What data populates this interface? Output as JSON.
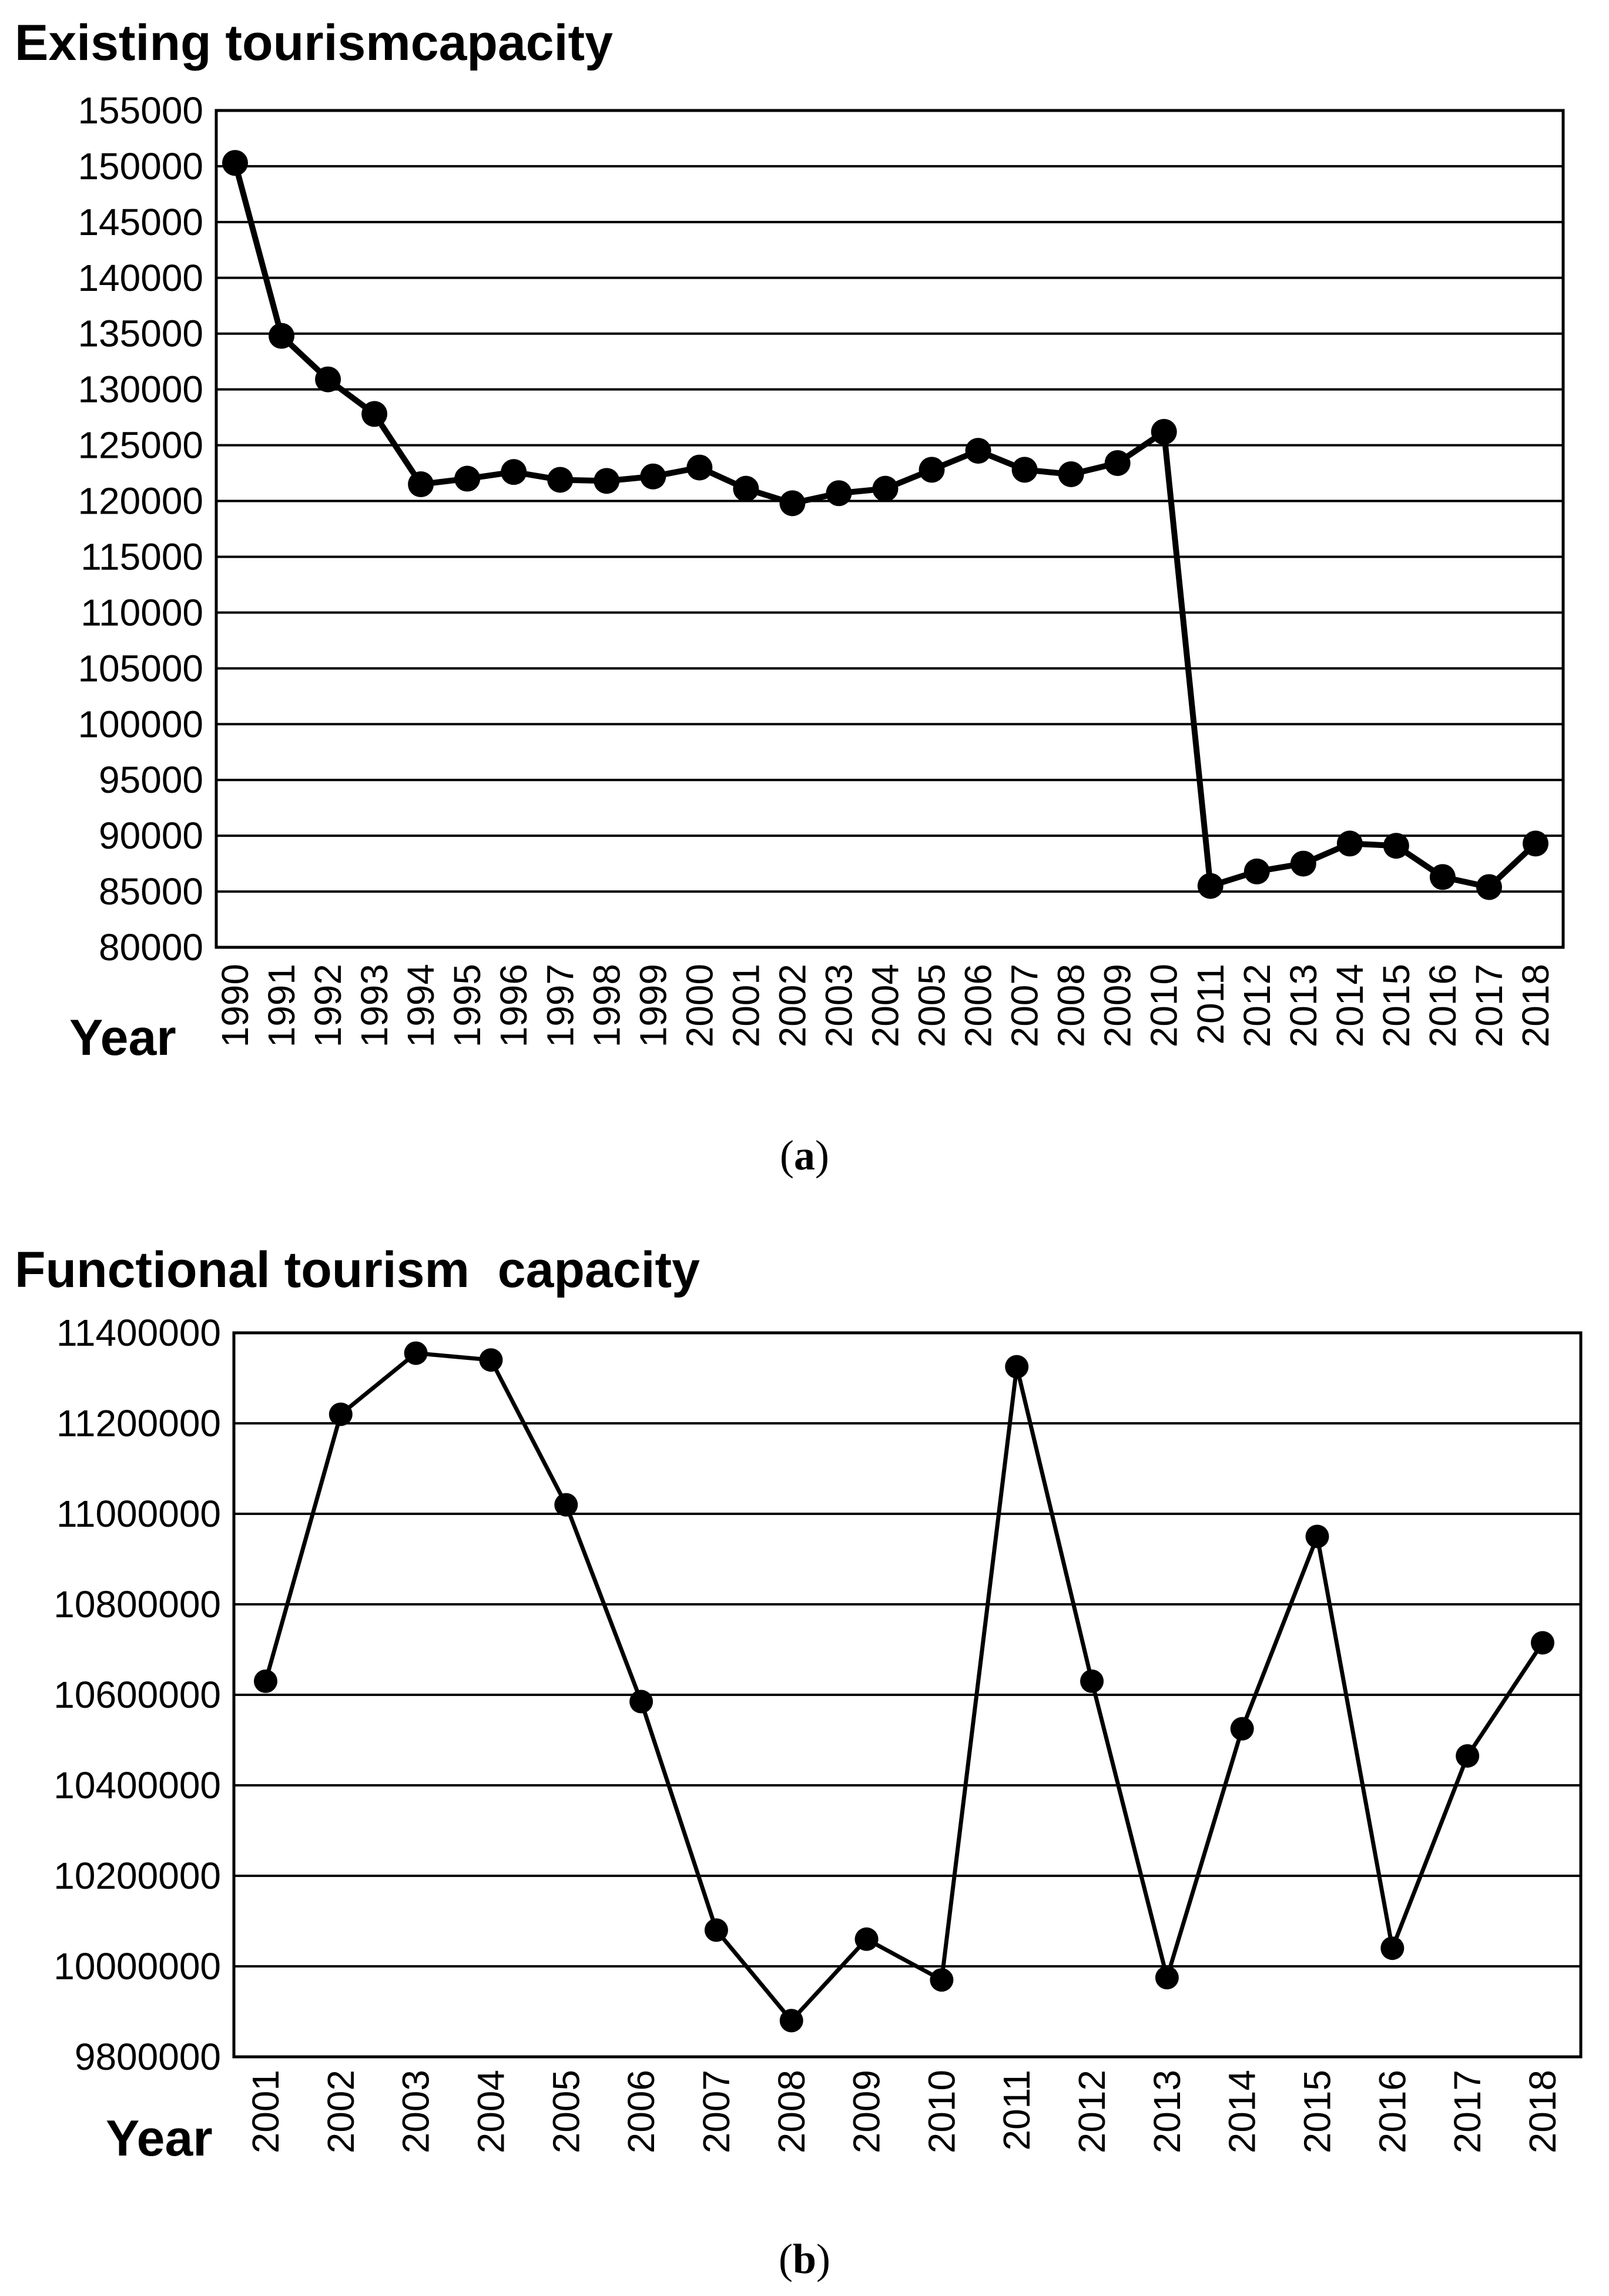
{
  "chart_data": [
    {
      "type": "line",
      "title": "Existing tourismcapacity",
      "xlabel": "Year",
      "ylabel": "",
      "caption": "a",
      "ylim": [
        80000,
        155000
      ],
      "ytick_step": 5000,
      "grid": true,
      "legend": "none",
      "x": [
        "1990",
        "1991",
        "1992",
        "1993",
        "1994",
        "1995",
        "1996",
        "1997",
        "1998",
        "1999",
        "2000",
        "2001",
        "2002",
        "2003",
        "2004",
        "2005",
        "2006",
        "2007",
        "2008",
        "2009",
        "2010",
        "2011",
        "2012",
        "2013",
        "2014",
        "2015",
        "2016",
        "2017",
        "2018"
      ],
      "series": [
        {
          "values": [
            150300,
            134800,
            130900,
            127800,
            121500,
            122000,
            122600,
            121900,
            121800,
            122200,
            123000,
            121100,
            119800,
            120700,
            121100,
            122800,
            124500,
            122800,
            122400,
            123400,
            126200,
            85500,
            86800,
            87500,
            89300,
            89100,
            86300,
            85400,
            89300
          ]
        }
      ]
    },
    {
      "type": "line",
      "title": "Functional tourism  capacity",
      "xlabel": "Year",
      "ylabel": "",
      "caption": "b",
      "ylim": [
        9800000,
        11400000
      ],
      "ytick_step": 200000,
      "grid": true,
      "legend": "none",
      "x": [
        "2001",
        "2002",
        "2003",
        "2004",
        "2005",
        "2006",
        "2007",
        "2008",
        "2009",
        "2010",
        "2011",
        "2012",
        "2013",
        "2014",
        "2015",
        "2016",
        "2017",
        "2018"
      ],
      "series": [
        {
          "values": [
            10630000,
            11220000,
            11355000,
            11340000,
            11020000,
            10585000,
            10080000,
            9880000,
            10060000,
            9970000,
            11325000,
            10630000,
            9975000,
            10525000,
            10950000,
            10040000,
            10465000,
            10715000
          ]
        }
      ]
    }
  ],
  "colors": {
    "line": "#000000",
    "grid": "#000000",
    "background": "#ffffff"
  }
}
